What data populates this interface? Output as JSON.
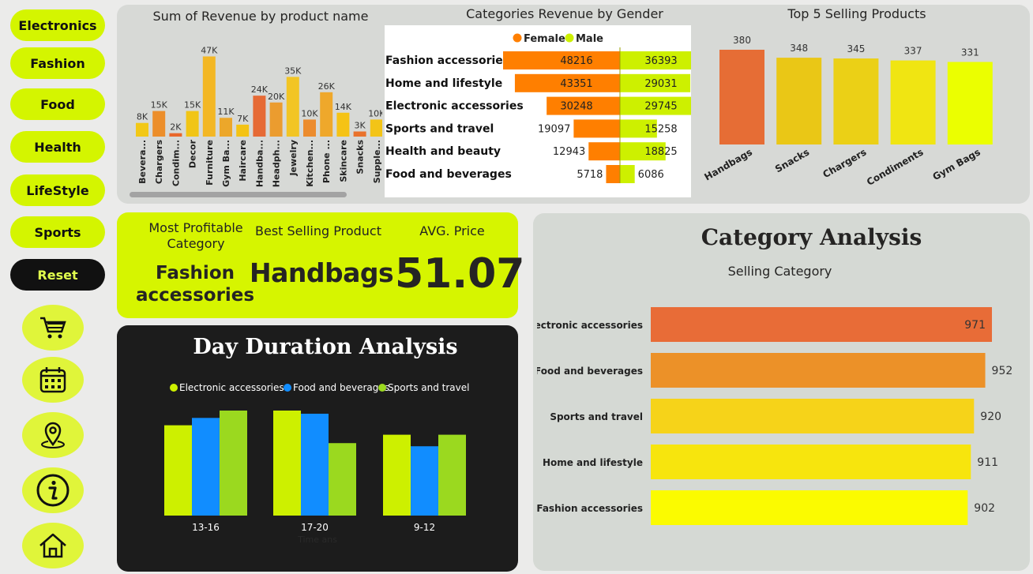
{
  "nav": {
    "buttons": [
      "Electronics",
      "Fashion",
      "Food",
      "Health",
      "LifeStyle",
      "Sports"
    ],
    "reset": "Reset",
    "icons": [
      "cart-icon",
      "calendar-icon",
      "location-pin-icon",
      "info-icon",
      "home-icon"
    ]
  },
  "colors": {
    "lime": "#d4f500",
    "orange": "#ff7f00",
    "male": "#cdf000",
    "dark": "#1c1c1c",
    "blue": "#118dff",
    "green": "#9bd91f"
  },
  "revenue_chart": {
    "title": "Sum of Revenue by product name",
    "chart_data": {
      "type": "bar",
      "categories": [
        "Bevera...",
        "Chargers",
        "Condim...",
        "Decor",
        "Furniture",
        "Gym Ba...",
        "Haircare",
        "Handba...",
        "Headph...",
        "Jewelry",
        "Kitchen...",
        "Phone ...",
        "Skincare",
        "Snacks",
        "Supple..."
      ],
      "values": [
        8,
        15,
        2,
        15,
        47,
        11,
        7,
        24,
        20,
        35,
        10,
        26,
        14,
        3,
        10
      ],
      "value_labels": [
        "8K",
        "15K",
        "2K",
        "15K",
        "47K",
        "11K",
        "7K",
        "24K",
        "20K",
        "35K",
        "10K",
        "26K",
        "14K",
        "3K",
        "10K"
      ],
      "colors": [
        "#f2c816",
        "#ec8e2a",
        "#e9672b",
        "#f1c516",
        "#f3b724",
        "#eca72a",
        "#f4c314",
        "#e66a35",
        "#eb9c2f",
        "#f2c524",
        "#ec8c2e",
        "#efa82b",
        "#f5c315",
        "#e9722c",
        "#f3c417"
      ],
      "ylim": [
        0,
        50
      ]
    }
  },
  "gender_chart": {
    "title": "Categories Revenue by Gender",
    "chart_data": {
      "type": "bar",
      "categories": [
        "Fashion accessories",
        "Home and lifestyle",
        "Electronic accessories",
        "Sports and travel",
        "Health and beauty",
        "Food and beverages"
      ],
      "series": [
        {
          "name": "Female",
          "values": [
            48216,
            43351,
            30248,
            19097,
            12943,
            5718
          ]
        },
        {
          "name": "Male",
          "values": [
            36393,
            29031,
            29745,
            15258,
            18825,
            6086
          ]
        }
      ]
    }
  },
  "top5_chart": {
    "title": "Top 5 Selling Products",
    "chart_data": {
      "type": "bar",
      "categories": [
        "Handbags",
        "Snacks",
        "Chargers",
        "Condiments",
        "Gym Bags"
      ],
      "values": [
        380,
        348,
        345,
        337,
        331
      ],
      "colors": [
        "#e66d35",
        "#eac716",
        "#ebd016",
        "#f0e512",
        "#ebff00"
      ],
      "ylim": [
        0,
        400
      ]
    }
  },
  "kpis": {
    "profitable_label": "Most Profitable Category",
    "profitable_value": "Fashion accessories",
    "best_label": "Best Selling Product",
    "best_value": "Handbags",
    "avg_label": "AVG. Price",
    "avg_value": "51.07"
  },
  "day_chart": {
    "title": "Day Duration Analysis",
    "axis_note": "Time ans",
    "chart_data": {
      "type": "bar",
      "categories": [
        "13-16",
        "17-20",
        "9-12"
      ],
      "series": [
        {
          "name": "Electronic accessories",
          "values": [
            86,
            100,
            77
          ]
        },
        {
          "name": "Food and beverages",
          "values": [
            93,
            97,
            66
          ]
        },
        {
          "name": "Sports and travel",
          "values": [
            100,
            69,
            77
          ]
        }
      ]
    }
  },
  "category_chart": {
    "title": "Category Analysis",
    "subtitle": "Selling Category",
    "chart_data": {
      "type": "bar",
      "categories": [
        "Electronic accessories",
        "Food and beverages",
        "Sports and travel",
        "Home and lifestyle",
        "Fashion accessories"
      ],
      "values": [
        971,
        952,
        920,
        911,
        902
      ],
      "colors": [
        "#e86c37",
        "#ec9128",
        "#f6d319",
        "#f7e50d",
        "#fbfb00"
      ]
    }
  }
}
